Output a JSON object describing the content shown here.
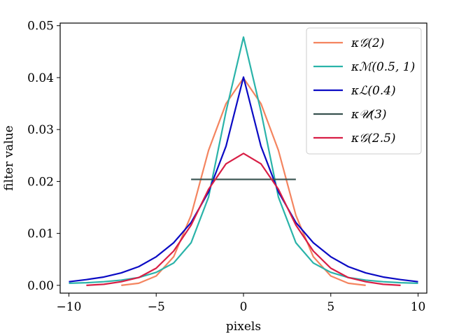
{
  "chart_data": {
    "type": "line",
    "title": "",
    "xlabel": "pixels",
    "ylabel": "filter value",
    "xlim": [
      -10.5,
      10.5
    ],
    "ylim": [
      -0.0015,
      0.0505
    ],
    "xticks": [
      -10,
      -5,
      0,
      5,
      10
    ],
    "xtick_labels": [
      "−10",
      "−5",
      "0",
      "5",
      "10"
    ],
    "yticks": [
      0.0,
      0.01,
      0.02,
      0.03,
      0.04,
      0.05
    ],
    "ytick_labels": [
      "0.00",
      "0.01",
      "0.02",
      "0.03",
      "0.04",
      "0.05"
    ],
    "legend_position": "top-right",
    "series": [
      {
        "name": "κ𝒢(2)",
        "color": "#f4845f",
        "x": [
          -7,
          -6,
          -5,
          -4,
          -3,
          -2,
          -1,
          0,
          1,
          2,
          3,
          4,
          5,
          6,
          7
        ],
        "y": [
          0.0,
          0.0004,
          0.0018,
          0.0055,
          0.0135,
          0.026,
          0.035,
          0.0399,
          0.035,
          0.026,
          0.0135,
          0.0055,
          0.0018,
          0.0004,
          0.0
        ]
      },
      {
        "name": "κℳ(0.5, 1)",
        "color": "#2ab3a9",
        "x": [
          -10,
          -9,
          -8,
          -7,
          -6,
          -5,
          -4,
          -3,
          -2,
          -1,
          0,
          1,
          2,
          3,
          4,
          5,
          6,
          7,
          8,
          9,
          10
        ],
        "y": [
          0.0004,
          0.0005,
          0.0007,
          0.001,
          0.0015,
          0.0025,
          0.0043,
          0.0082,
          0.017,
          0.0335,
          0.0478,
          0.0335,
          0.017,
          0.0082,
          0.0043,
          0.0025,
          0.0015,
          0.001,
          0.0007,
          0.0005,
          0.0004
        ]
      },
      {
        "name": "κℒ(0.4)",
        "color": "#0b0bc4",
        "x": [
          -10,
          -9,
          -8,
          -7,
          -6,
          -5,
          -4,
          -3,
          -2,
          -1,
          0,
          1,
          2,
          3,
          4,
          5,
          6,
          7,
          8,
          9,
          10
        ],
        "y": [
          0.0007,
          0.0011,
          0.0016,
          0.0024,
          0.0036,
          0.0055,
          0.0082,
          0.0121,
          0.018,
          0.0268,
          0.0401,
          0.0268,
          0.018,
          0.0121,
          0.0082,
          0.0055,
          0.0036,
          0.0024,
          0.0016,
          0.0011,
          0.0007
        ]
      },
      {
        "name": "κ𝒰(3)",
        "color": "#37524f",
        "x": [
          -3,
          3
        ],
        "y": [
          0.0204,
          0.0204
        ]
      },
      {
        "name": "κ𝒢(2.5)",
        "color": "#d81e45",
        "x": [
          -9,
          -8,
          -7,
          -6,
          -5,
          -4,
          -3,
          -2,
          -1,
          0,
          1,
          2,
          3,
          4,
          5,
          6,
          7,
          8,
          9
        ],
        "y": [
          0.0,
          0.0002,
          0.0007,
          0.0015,
          0.0033,
          0.0066,
          0.0116,
          0.0185,
          0.0234,
          0.0254,
          0.0234,
          0.0185,
          0.0116,
          0.0066,
          0.0033,
          0.0015,
          0.0007,
          0.0002,
          0.0
        ]
      }
    ]
  }
}
